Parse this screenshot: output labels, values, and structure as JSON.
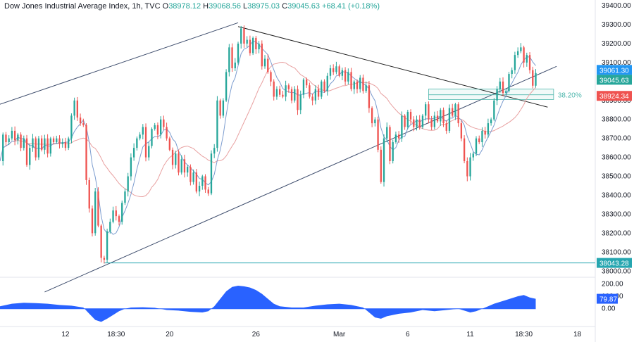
{
  "legend": {
    "symbol": "Dow Jones Industrial Average Index, 1h, TVC",
    "o_label": "O",
    "o_value": "38978.12",
    "h_label": "H",
    "h_value": "39068.56",
    "l_label": "L",
    "l_value": "38975.03",
    "c_label": "C",
    "c_value": "39045.63",
    "change": "+68.41 (+0.18%)"
  },
  "colors": {
    "up": "#26a69a",
    "down": "#ef5350",
    "ma_fast": "#7b9ccf",
    "ma_slow": "#e8a0a0",
    "trendline": "#3c4b6b",
    "support": "#26a6b0",
    "fib_box": "#4db6ac",
    "oscillator": "#2962ff",
    "price_badge_high": "#2196f3",
    "price_badge_close": "#26a69a",
    "price_badge_ma": "#ef5350",
    "price_badge_support": "#26a6b0",
    "osc_badge": "#2962ff"
  },
  "price_badges": [
    {
      "label": "39061.30",
      "value": 39061.3,
      "color_key": "price_badge_high"
    },
    {
      "label": "39045.63",
      "value": 39045.63,
      "color_key": "price_badge_close"
    },
    {
      "label": "38924.34",
      "value": 38924.34,
      "color_key": "price_badge_ma"
    },
    {
      "label": "38043.28",
      "value": 38043.28,
      "color_key": "price_badge_support"
    }
  ],
  "fib_label": "38.20%",
  "osc_badge": "79.87",
  "chart_data": {
    "type": "candlestick",
    "y_axis": {
      "range": [
        37975,
        39430
      ],
      "ticks": [
        "39400.00",
        "39300.00",
        "39200.00",
        "39100.00",
        "39000.00",
        "38900.00",
        "38800.00",
        "38700.00",
        "38600.00",
        "38500.00",
        "38400.00",
        "38300.00",
        "38200.00",
        "38100.00",
        "38000.00"
      ],
      "tick_values": [
        39400,
        39300,
        39200,
        39100,
        39000,
        38900,
        38800,
        38700,
        38600,
        38500,
        38400,
        38300,
        38200,
        38100,
        38000
      ]
    },
    "x_axis": {
      "range": [
        0,
        200
      ],
      "ticks": [
        {
          "label": "12",
          "x": 22
        },
        {
          "label": "18:30",
          "x": 39
        },
        {
          "label": "20",
          "x": 57
        },
        {
          "label": "26",
          "x": 86
        },
        {
          "label": "Mar",
          "x": 114
        },
        {
          "label": "6",
          "x": 137
        },
        {
          "label": "11",
          "x": 158
        },
        {
          "label": "18:30",
          "x": 176
        },
        {
          "label": "18",
          "x": 194
        }
      ]
    },
    "osc_axis": {
      "range": [
        -120,
        230
      ],
      "ticks": [
        "200.00",
        "100.00",
        "0.00"
      ],
      "tick_values": [
        200,
        100,
        0
      ]
    },
    "support_level": 38043.28,
    "channel": {
      "upper": [
        [
          0,
          38880
        ],
        [
          80,
          39310
        ]
      ],
      "lower": [
        [
          15,
          37890
        ],
        [
          187,
          39080
        ]
      ]
    },
    "resistance_line": [
      [
        80,
        39290
      ],
      [
        184,
        38865
      ]
    ],
    "fib_zone": {
      "x": [
        144,
        186
      ],
      "y": [
        38905,
        38960
      ],
      "level_value": 38930
    },
    "candle_points": [
      [
        0,
        38580
      ],
      [
        1,
        38720
      ],
      [
        2,
        38680
      ],
      [
        3,
        38700
      ],
      [
        4,
        38740
      ],
      [
        5,
        38690
      ],
      [
        6,
        38720
      ],
      [
        7,
        38650
      ],
      [
        8,
        38700
      ],
      [
        9,
        38560
      ],
      [
        10,
        38650
      ],
      [
        11,
        38700
      ],
      [
        12,
        38600
      ],
      [
        13,
        38700
      ],
      [
        14,
        38640
      ],
      [
        15,
        38700
      ],
      [
        16,
        38620
      ],
      [
        17,
        38700
      ],
      [
        18,
        38680
      ],
      [
        19,
        38700
      ],
      [
        20,
        38670
      ],
      [
        21,
        38680
      ],
      [
        22,
        38650
      ],
      [
        23,
        38700
      ],
      [
        24,
        38820
      ],
      [
        25,
        38900
      ],
      [
        26,
        38810
      ],
      [
        27,
        38780
      ],
      [
        28,
        38770
      ],
      [
        29,
        38480
      ],
      [
        30,
        38330
      ],
      [
        31,
        38200
      ],
      [
        32,
        38420
      ],
      [
        33,
        38240
      ],
      [
        34,
        38070
      ],
      [
        35,
        38060
      ],
      [
        36,
        38210
      ],
      [
        37,
        38260
      ],
      [
        38,
        38320
      ],
      [
        39,
        38290
      ],
      [
        40,
        38260
      ],
      [
        41,
        38360
      ],
      [
        42,
        38420
      ],
      [
        43,
        38500
      ],
      [
        44,
        38600
      ],
      [
        45,
        38650
      ],
      [
        46,
        38700
      ],
      [
        47,
        38720
      ],
      [
        48,
        38760
      ],
      [
        49,
        38600
      ],
      [
        50,
        38660
      ],
      [
        51,
        38750
      ],
      [
        52,
        38770
      ],
      [
        53,
        38720
      ],
      [
        54,
        38800
      ],
      [
        55,
        38760
      ],
      [
        56,
        38700
      ],
      [
        57,
        38640
      ],
      [
        58,
        38560
      ],
      [
        59,
        38620
      ],
      [
        60,
        38520
      ],
      [
        61,
        38590
      ],
      [
        62,
        38520
      ],
      [
        63,
        38550
      ],
      [
        64,
        38470
      ],
      [
        65,
        38520
      ],
      [
        66,
        38420
      ],
      [
        67,
        38450
      ],
      [
        68,
        38500
      ],
      [
        69,
        38430
      ],
      [
        70,
        38410
      ],
      [
        71,
        38620
      ],
      [
        72,
        38650
      ],
      [
        73,
        38900
      ],
      [
        74,
        38820
      ],
      [
        75,
        38900
      ],
      [
        76,
        39050
      ],
      [
        77,
        39180
      ],
      [
        78,
        39070
      ],
      [
        79,
        39100
      ],
      [
        80,
        39200
      ],
      [
        81,
        39280
      ],
      [
        82,
        39200
      ],
      [
        83,
        39220
      ],
      [
        84,
        39150
      ],
      [
        85,
        39230
      ],
      [
        86,
        39170
      ],
      [
        87,
        39200
      ],
      [
        88,
        39080
      ],
      [
        89,
        39120
      ],
      [
        90,
        39050
      ],
      [
        91,
        39000
      ],
      [
        92,
        38920
      ],
      [
        93,
        38960
      ],
      [
        94,
        38930
      ],
      [
        95,
        38920
      ],
      [
        96,
        38980
      ],
      [
        97,
        38960
      ],
      [
        98,
        38900
      ],
      [
        99,
        38960
      ],
      [
        100,
        38850
      ],
      [
        101,
        38930
      ],
      [
        102,
        39010
      ],
      [
        103,
        38980
      ],
      [
        104,
        38920
      ],
      [
        105,
        38900
      ],
      [
        106,
        38960
      ],
      [
        107,
        38920
      ],
      [
        108,
        39000
      ],
      [
        109,
        38950
      ],
      [
        110,
        39030
      ],
      [
        111,
        39070
      ],
      [
        112,
        39050
      ],
      [
        113,
        39080
      ],
      [
        114,
        39030
      ],
      [
        115,
        39060
      ],
      [
        116,
        39000
      ],
      [
        117,
        39050
      ],
      [
        118,
        38960
      ],
      [
        119,
        39000
      ],
      [
        120,
        38960
      ],
      [
        121,
        39020
      ],
      [
        122,
        38950
      ],
      [
        123,
        38980
      ],
      [
        124,
        38860
      ],
      [
        125,
        38780
      ],
      [
        126,
        38800
      ],
      [
        127,
        38640
      ],
      [
        128,
        38470
      ],
      [
        129,
        38700
      ],
      [
        130,
        38760
      ],
      [
        131,
        38580
      ],
      [
        132,
        38680
      ],
      [
        133,
        38720
      ],
      [
        134,
        38700
      ],
      [
        135,
        38820
      ],
      [
        136,
        38760
      ],
      [
        137,
        38840
      ],
      [
        138,
        38800
      ],
      [
        139,
        38760
      ],
      [
        140,
        38800
      ],
      [
        141,
        38760
      ],
      [
        142,
        38820
      ],
      [
        143,
        38880
      ],
      [
        144,
        38800
      ],
      [
        145,
        38760
      ],
      [
        146,
        38820
      ],
      [
        147,
        38790
      ],
      [
        148,
        38850
      ],
      [
        149,
        38780
      ],
      [
        150,
        38740
      ],
      [
        151,
        38860
      ],
      [
        152,
        38820
      ],
      [
        153,
        38880
      ],
      [
        154,
        38780
      ],
      [
        155,
        38700
      ],
      [
        156,
        38580
      ],
      [
        157,
        38500
      ],
      [
        158,
        38600
      ],
      [
        159,
        38620
      ],
      [
        160,
        38700
      ],
      [
        161,
        38680
      ],
      [
        162,
        38740
      ],
      [
        163,
        38720
      ],
      [
        164,
        38780
      ],
      [
        165,
        38800
      ],
      [
        166,
        38900
      ],
      [
        167,
        38960
      ],
      [
        168,
        39000
      ],
      [
        169,
        38940
      ],
      [
        170,
        38950
      ],
      [
        171,
        39040
      ],
      [
        172,
        39060
      ],
      [
        173,
        39140
      ],
      [
        174,
        39160
      ],
      [
        175,
        39180
      ],
      [
        176,
        39100
      ],
      [
        177,
        39140
      ],
      [
        178,
        39060
      ],
      [
        179,
        38978
      ],
      [
        180,
        39045
      ]
    ],
    "oscillator_points": [
      [
        0,
        20
      ],
      [
        4,
        40
      ],
      [
        8,
        48
      ],
      [
        12,
        45
      ],
      [
        16,
        40
      ],
      [
        20,
        30
      ],
      [
        24,
        25
      ],
      [
        28,
        10
      ],
      [
        30,
        -40
      ],
      [
        32,
        -90
      ],
      [
        34,
        -105
      ],
      [
        36,
        -80
      ],
      [
        38,
        -50
      ],
      [
        40,
        -20
      ],
      [
        42,
        0
      ],
      [
        44,
        10
      ],
      [
        48,
        12
      ],
      [
        52,
        8
      ],
      [
        56,
        -10
      ],
      [
        60,
        -15
      ],
      [
        64,
        -25
      ],
      [
        68,
        -30
      ],
      [
        70,
        -20
      ],
      [
        72,
        20
      ],
      [
        74,
        80
      ],
      [
        76,
        140
      ],
      [
        78,
        175
      ],
      [
        80,
        185
      ],
      [
        82,
        180
      ],
      [
        84,
        170
      ],
      [
        86,
        150
      ],
      [
        88,
        120
      ],
      [
        90,
        80
      ],
      [
        92,
        40
      ],
      [
        94,
        20
      ],
      [
        98,
        10
      ],
      [
        102,
        10
      ],
      [
        106,
        25
      ],
      [
        110,
        35
      ],
      [
        114,
        40
      ],
      [
        118,
        30
      ],
      [
        122,
        10
      ],
      [
        124,
        -30
      ],
      [
        126,
        -70
      ],
      [
        128,
        -80
      ],
      [
        130,
        -60
      ],
      [
        134,
        -40
      ],
      [
        138,
        -30
      ],
      [
        142,
        -10
      ],
      [
        146,
        -20
      ],
      [
        150,
        -10
      ],
      [
        154,
        0
      ],
      [
        156,
        -15
      ],
      [
        158,
        -30
      ],
      [
        160,
        -20
      ],
      [
        162,
        0
      ],
      [
        164,
        20
      ],
      [
        166,
        40
      ],
      [
        170,
        70
      ],
      [
        174,
        100
      ],
      [
        176,
        110
      ],
      [
        178,
        90
      ],
      [
        180,
        80
      ]
    ]
  }
}
